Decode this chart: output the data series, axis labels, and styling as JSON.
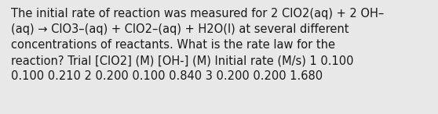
{
  "text": "The initial rate of reaction was measured for 2 ClO2(aq) + 2 OH–\n(aq) → ClO3–(aq) + ClO2–(aq) + H2O(l) at several different\nconcentrations of reactants. What is the rate law for the\nreaction? Trial [ClO2] (M) [OH-] (M) Initial rate (M/s) 1 0.100\n0.100 0.210 2 0.200 0.100 0.840 3 0.200 0.200 1.680",
  "background_color": "#e8e8e8",
  "text_color": "#1a1a1a",
  "font_size": 10.5,
  "fig_width": 5.58,
  "fig_height": 1.46,
  "dpi": 100
}
